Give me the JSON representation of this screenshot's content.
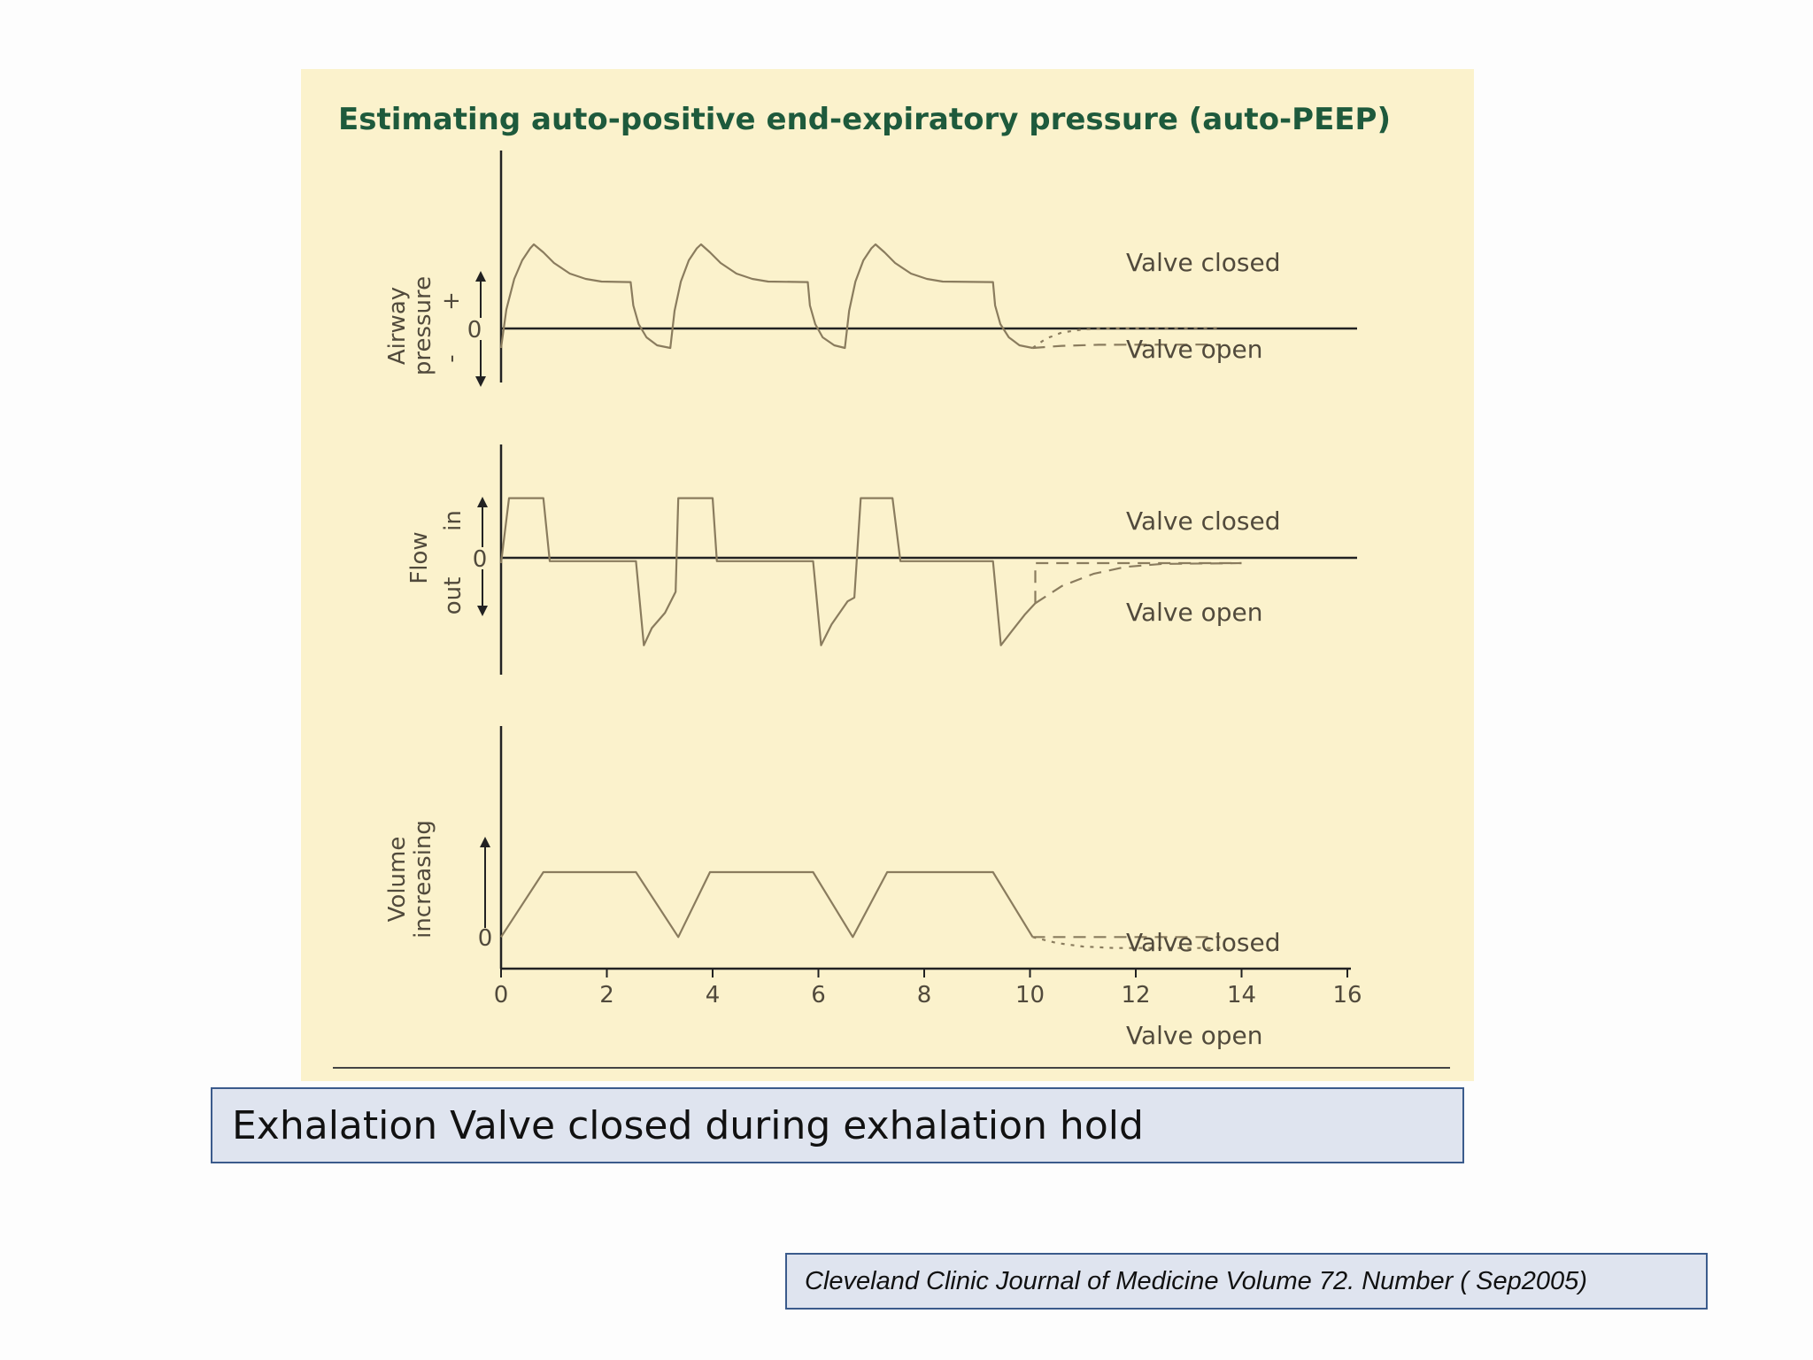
{
  "caption": "Exhalation Valve closed during exhalation hold",
  "citation": "Cleveland Clinic Journal of Medicine Volume 72. Number ( Sep2005)",
  "colors": {
    "figure_background": "#fbf2cc",
    "title": "#1e5a3c",
    "trace": "#8a7c5e",
    "axis": "#222222",
    "caption_box": "#dfe4ef",
    "caption_border": "#3b5b8c"
  },
  "chart_data": {
    "type": "line",
    "title": "Estimating auto-positive end-expiratory pressure (auto-PEEP)",
    "x_ticks": [
      "0",
      "2",
      "4",
      "6",
      "8",
      "10",
      "12",
      "14",
      "16"
    ],
    "xlim": [
      0,
      16
    ],
    "grid": false,
    "panels": [
      {
        "id": "pressure",
        "ylabel": [
          "Airway",
          "pressure"
        ],
        "axis_marks": {
          "plus": "+",
          "zero": "0",
          "minus": "-"
        },
        "ylim": [
          -1.6,
          4.3
        ],
        "series": [
          {
            "style": "solid",
            "points": [
              [
                0,
                0
              ],
              [
                0.1,
                1.45
              ],
              [
                0.25,
                2.6
              ],
              [
                0.4,
                3.3
              ],
              [
                0.55,
                3.75
              ],
              [
                0.62,
                3.9
              ],
              [
                0.8,
                3.6
              ],
              [
                1.0,
                3.2
              ],
              [
                1.3,
                2.8
              ],
              [
                1.6,
                2.6
              ],
              [
                1.9,
                2.5
              ],
              [
                2.45,
                2.48
              ],
              [
                2.5,
                1.6
              ],
              [
                2.6,
                0.9
              ],
              [
                2.75,
                0.4
              ],
              [
                2.95,
                0.1
              ],
              [
                3.2,
                0
              ],
              [
                3.28,
                1.4
              ],
              [
                3.4,
                2.5
              ],
              [
                3.55,
                3.3
              ],
              [
                3.7,
                3.75
              ],
              [
                3.78,
                3.9
              ],
              [
                3.95,
                3.6
              ],
              [
                4.15,
                3.2
              ],
              [
                4.45,
                2.8
              ],
              [
                4.75,
                2.6
              ],
              [
                5.05,
                2.5
              ],
              [
                5.8,
                2.48
              ],
              [
                5.84,
                1.6
              ],
              [
                5.94,
                0.9
              ],
              [
                6.08,
                0.4
              ],
              [
                6.3,
                0.1
              ],
              [
                6.5,
                0
              ],
              [
                6.58,
                1.4
              ],
              [
                6.7,
                2.5
              ],
              [
                6.85,
                3.3
              ],
              [
                7.0,
                3.75
              ],
              [
                7.08,
                3.9
              ],
              [
                7.25,
                3.6
              ],
              [
                7.45,
                3.2
              ],
              [
                7.75,
                2.8
              ],
              [
                8.05,
                2.6
              ],
              [
                8.35,
                2.5
              ],
              [
                9.3,
                2.48
              ],
              [
                9.34,
                1.6
              ],
              [
                9.44,
                0.9
              ],
              [
                9.6,
                0.4
              ],
              [
                9.8,
                0.1
              ],
              [
                10.05,
                0
              ]
            ]
          },
          {
            "name": "Valve closed",
            "style": "dotted",
            "points": [
              [
                10.05,
                0
              ],
              [
                10.3,
                0.35
              ],
              [
                10.6,
                0.58
              ],
              [
                11.0,
                0.7
              ],
              [
                11.5,
                0.74
              ],
              [
                13.6,
                0.75
              ]
            ]
          },
          {
            "name": "Valve open",
            "style": "dashed",
            "points": [
              [
                10.05,
                0
              ],
              [
                10.6,
                0.08
              ],
              [
                11.3,
                0.12
              ],
              [
                13.6,
                0.13
              ]
            ]
          }
        ],
        "annotations": [
          "Valve closed",
          "Valve open"
        ]
      },
      {
        "id": "flow",
        "ylabel": [
          "Flow"
        ],
        "axis_marks": {
          "in": "in",
          "zero": "0",
          "out": "out"
        },
        "ylim": [
          -2.2,
          2.2
        ],
        "series": [
          {
            "style": "solid",
            "points": [
              [
                0,
                0
              ],
              [
                0.15,
                1.7
              ],
              [
                0.8,
                1.7
              ],
              [
                0.92,
                0.05
              ],
              [
                2.55,
                0.05
              ],
              [
                2.7,
                -2.15
              ],
              [
                2.85,
                -1.7
              ],
              [
                3.1,
                -1.3
              ],
              [
                3.3,
                -0.75
              ],
              [
                3.35,
                1.7
              ],
              [
                4.0,
                1.7
              ],
              [
                4.08,
                0.05
              ],
              [
                5.9,
                0.05
              ],
              [
                6.05,
                -2.15
              ],
              [
                6.25,
                -1.6
              ],
              [
                6.55,
                -1.0
              ],
              [
                6.68,
                -0.9
              ],
              [
                6.8,
                1.7
              ],
              [
                7.4,
                1.7
              ],
              [
                7.55,
                0.05
              ],
              [
                9.3,
                0.05
              ],
              [
                9.45,
                -2.15
              ],
              [
                9.7,
                -1.7
              ],
              [
                9.9,
                -1.35
              ],
              [
                10.1,
                -1.05
              ]
            ]
          },
          {
            "name": "Valve closed",
            "style": "dashed",
            "points": [
              [
                10.1,
                -1.05
              ],
              [
                10.1,
                0
              ],
              [
                14.0,
                0
              ]
            ]
          },
          {
            "name": "Valve open",
            "style": "dashed",
            "points": [
              [
                10.1,
                -1.05
              ],
              [
                10.6,
                -0.6
              ],
              [
                11.2,
                -0.28
              ],
              [
                11.8,
                -0.1
              ],
              [
                12.5,
                -0.02
              ],
              [
                14.0,
                0
              ]
            ]
          }
        ],
        "annotations": [
          "Valve closed",
          "Valve open"
        ]
      },
      {
        "id": "volume",
        "ylabel": [
          "Volume",
          "increasing"
        ],
        "axis_marks": {
          "zero": "0"
        },
        "ylim": [
          -1.4,
          4.6
        ],
        "series": [
          {
            "style": "solid",
            "points": [
              [
                0,
                0
              ],
              [
                0.8,
                2.2
              ],
              [
                2.55,
                2.2
              ],
              [
                3.35,
                0
              ],
              [
                3.95,
                2.2
              ],
              [
                5.9,
                2.2
              ],
              [
                6.65,
                0
              ],
              [
                7.3,
                2.2
              ],
              [
                9.3,
                2.2
              ],
              [
                10.05,
                0
              ]
            ]
          },
          {
            "name": "Valve closed",
            "style": "dashed",
            "points": [
              [
                10.05,
                0
              ],
              [
                13.6,
                0
              ]
            ]
          },
          {
            "name": "Valve open",
            "style": "dotted",
            "points": [
              [
                10.05,
                0
              ],
              [
                10.5,
                -0.2
              ],
              [
                11.0,
                -0.32
              ],
              [
                11.6,
                -0.37
              ],
              [
                13.6,
                -0.37
              ]
            ]
          }
        ],
        "annotations": [
          "Valve closed",
          "Valve open"
        ]
      }
    ]
  }
}
